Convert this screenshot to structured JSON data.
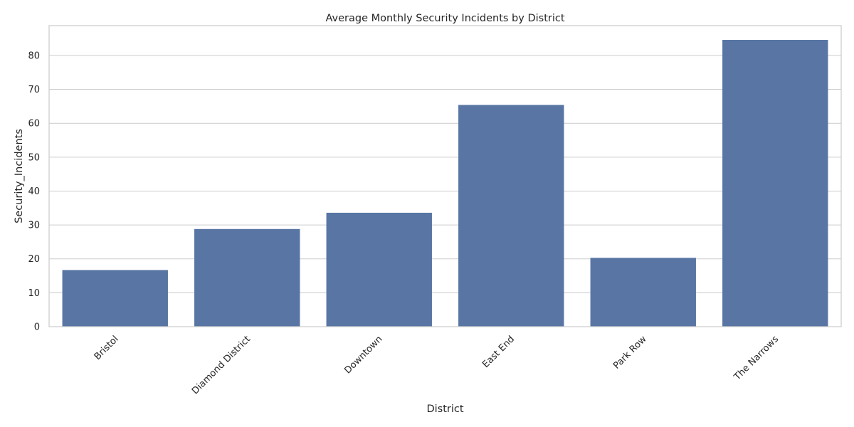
{
  "chart_data": {
    "type": "bar",
    "title": "Average Monthly Security Incidents by District",
    "xlabel": "District",
    "ylabel": "Security_Incidents",
    "categories": [
      "Bristol",
      "Diamond District",
      "Downtown",
      "East End",
      "Park Row",
      "The Narrows"
    ],
    "values": [
      16.7,
      28.8,
      33.6,
      65.4,
      20.3,
      84.6
    ],
    "ylim": [
      0,
      88.8
    ],
    "yticks": [
      0,
      10,
      20,
      30,
      40,
      50,
      60,
      70,
      80
    ],
    "grid": true,
    "bar_color": "#5875a4",
    "xtick_rotation": 45
  }
}
